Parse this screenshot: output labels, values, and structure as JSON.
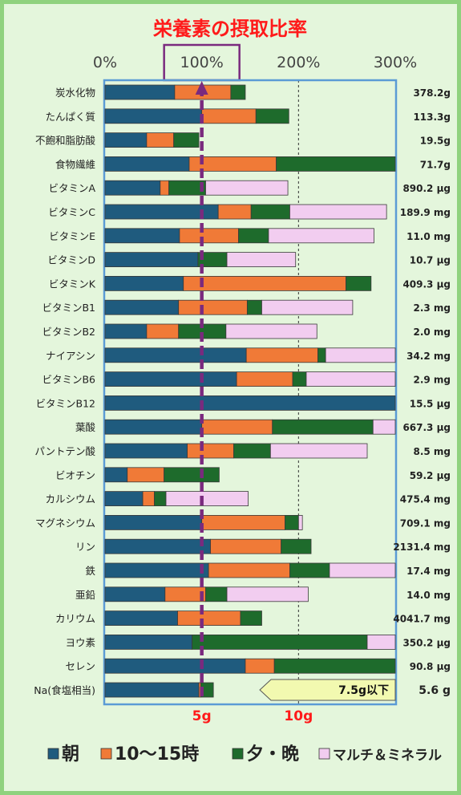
{
  "chart_data": {
    "type": "bar",
    "orientation": "horizontal",
    "stacked": true,
    "title": "栄養素の摂取比率",
    "x_ticks": [
      "0%",
      "100%",
      "200%",
      "300%"
    ],
    "xlim": [
      0,
      300
    ],
    "highlight_tick": "100%",
    "reference_line": {
      "value": 100,
      "style": "dashed",
      "color": "#7a2a7e"
    },
    "dotted_line": {
      "value": 200
    },
    "ref_labels": [
      {
        "text": "5g",
        "value": 100
      },
      {
        "text": "10g",
        "value": 200
      }
    ],
    "legend_position": "bottom",
    "categories": [
      "炭水化物",
      "たんぱく質",
      "不飽和脂肪酸",
      "食物繊維",
      "ビタミンA",
      "ビタミンC",
      "ビタミンE",
      "ビタミンD",
      "ビタミンK",
      "ビタミンB1",
      "ビタミンB2",
      "ナイアシン",
      "ビタミンB6",
      "ビタミンB12",
      "葉酸",
      "パントテン酸",
      "ビオチン",
      "カルシウム",
      "マグネシウム",
      "リン",
      "鉄",
      "亜鉛",
      "カリウム",
      "ヨウ素",
      "セレン",
      "Na(食塩相当)"
    ],
    "value_labels": [
      "378.2g",
      "113.3g",
      "19.5g",
      "71.7g",
      "890.2 μg",
      "189.9 mg",
      "11.0 mg",
      "10.7 μg",
      "409.3 μg",
      "2.3 mg",
      "2.0 mg",
      "34.2 mg",
      "2.9 mg",
      "15.5 μg",
      "667.3 μg",
      "8.5 mg",
      "59.2 μg",
      "475.4 mg",
      "709.1 mg",
      "2131.4 mg",
      "17.4 mg",
      "14.0 mg",
      "4041.7 mg",
      "350.2 μg",
      "90.8 μg",
      "5.6 g"
    ],
    "series": [
      {
        "name": "朝",
        "color": "#1f5b7e",
        "values": [
          72,
          100,
          43,
          87,
          57,
          117,
          77,
          96,
          81,
          76,
          43,
          146,
          136,
          300,
          100,
          85,
          23,
          39,
          100,
          109,
          107,
          62,
          75,
          90,
          145,
          97
        ]
      },
      {
        "name": "10〜15時",
        "color": "#f07a37",
        "values": [
          58,
          56,
          28,
          90,
          9,
          34,
          61,
          0,
          168,
          71,
          33,
          74,
          58,
          0,
          73,
          48,
          38,
          12,
          86,
          73,
          84,
          42,
          65,
          0,
          30,
          2
        ]
      },
      {
        "name": "夕・晩",
        "color": "#1e6b2c",
        "values": [
          15,
          34,
          26,
          123,
          38,
          40,
          31,
          30,
          26,
          15,
          49,
          8,
          14,
          0,
          104,
          38,
          57,
          12,
          14,
          31,
          41,
          22,
          22,
          181,
          125,
          13
        ]
      },
      {
        "name": "マルチ＆ミネラル",
        "color": "#f2cdf0",
        "values": [
          0,
          0,
          0,
          0,
          85,
          100,
          109,
          71,
          0,
          94,
          94,
          72,
          92,
          0,
          23,
          100,
          0,
          85,
          4,
          0,
          70,
          84,
          0,
          31,
          0,
          0
        ]
      }
    ],
    "annotation": {
      "text": "7.5g以下",
      "category": "Na(食塩相当)",
      "from_value": 160,
      "to_value": 300,
      "color": "#f2f9b0"
    }
  }
}
